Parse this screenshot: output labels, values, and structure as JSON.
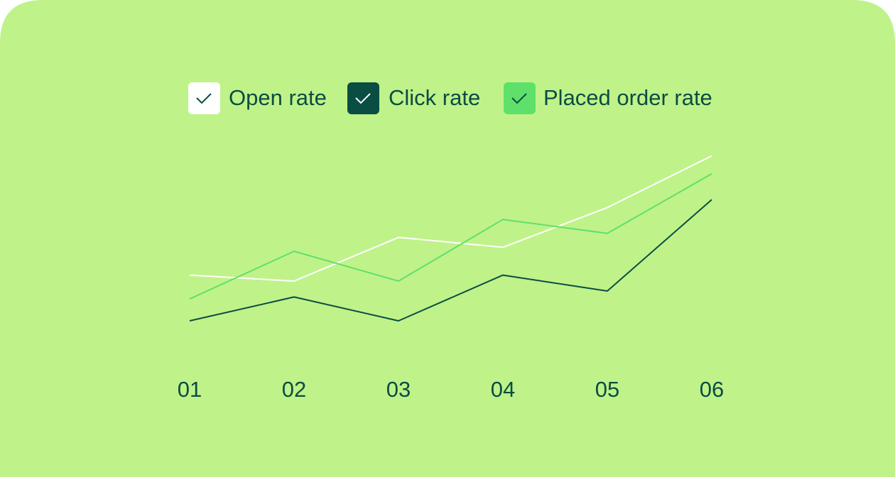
{
  "chart_data": {
    "type": "line",
    "categories": [
      "01",
      "02",
      "03",
      "04",
      "05",
      "06"
    ],
    "series": [
      {
        "name": "Open rate",
        "color": "#ffffff",
        "values": [
          33,
          30,
          52,
          47,
          67,
          93
        ]
      },
      {
        "name": "Click rate",
        "color": "#0a4d42",
        "values": [
          10,
          22,
          10,
          33,
          25,
          71
        ]
      },
      {
        "name": "Placed order rate",
        "color": "#5fe06b",
        "values": [
          21,
          45,
          30,
          61,
          54,
          84
        ]
      }
    ],
    "ylim": [
      0,
      100
    ]
  }
}
